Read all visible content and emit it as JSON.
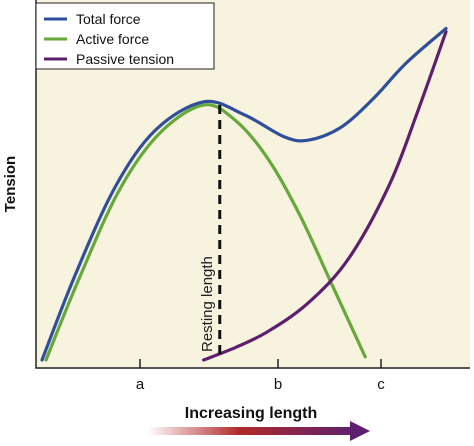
{
  "chart_data": {
    "type": "line",
    "title": "",
    "xlabel": "Increasing length",
    "ylabel": "Tension",
    "x_ticks": [
      "a",
      "b",
      "c"
    ],
    "grid": false,
    "legend_placement": "top-left",
    "background_color": "#f8f3df",
    "annotation": {
      "label": "Resting length",
      "style": "dashed vertical line"
    },
    "series": [
      {
        "name": "Total force",
        "color": "#2f4f9a",
        "points": [
          [
            0.0,
            0.0
          ],
          [
            0.08,
            0.26
          ],
          [
            0.18,
            0.54
          ],
          [
            0.28,
            0.72
          ],
          [
            0.4,
            0.81
          ],
          [
            0.5,
            0.77
          ],
          [
            0.6,
            0.7
          ],
          [
            0.66,
            0.69
          ],
          [
            0.74,
            0.73
          ],
          [
            0.82,
            0.82
          ],
          [
            0.9,
            0.93
          ],
          [
            1.0,
            1.04
          ]
        ]
      },
      {
        "name": "Active force",
        "color": "#66a83a",
        "points": [
          [
            0.01,
            0.0
          ],
          [
            0.09,
            0.25
          ],
          [
            0.19,
            0.53
          ],
          [
            0.29,
            0.71
          ],
          [
            0.4,
            0.8
          ],
          [
            0.48,
            0.75
          ],
          [
            0.56,
            0.63
          ],
          [
            0.64,
            0.45
          ],
          [
            0.72,
            0.23
          ],
          [
            0.8,
            0.01
          ]
        ]
      },
      {
        "name": "Passive tension",
        "color": "#5e1f6e",
        "points": [
          [
            0.4,
            0.0
          ],
          [
            0.48,
            0.04
          ],
          [
            0.56,
            0.09
          ],
          [
            0.66,
            0.18
          ],
          [
            0.76,
            0.32
          ],
          [
            0.86,
            0.55
          ],
          [
            0.93,
            0.78
          ],
          [
            1.0,
            1.03
          ]
        ]
      }
    ]
  }
}
